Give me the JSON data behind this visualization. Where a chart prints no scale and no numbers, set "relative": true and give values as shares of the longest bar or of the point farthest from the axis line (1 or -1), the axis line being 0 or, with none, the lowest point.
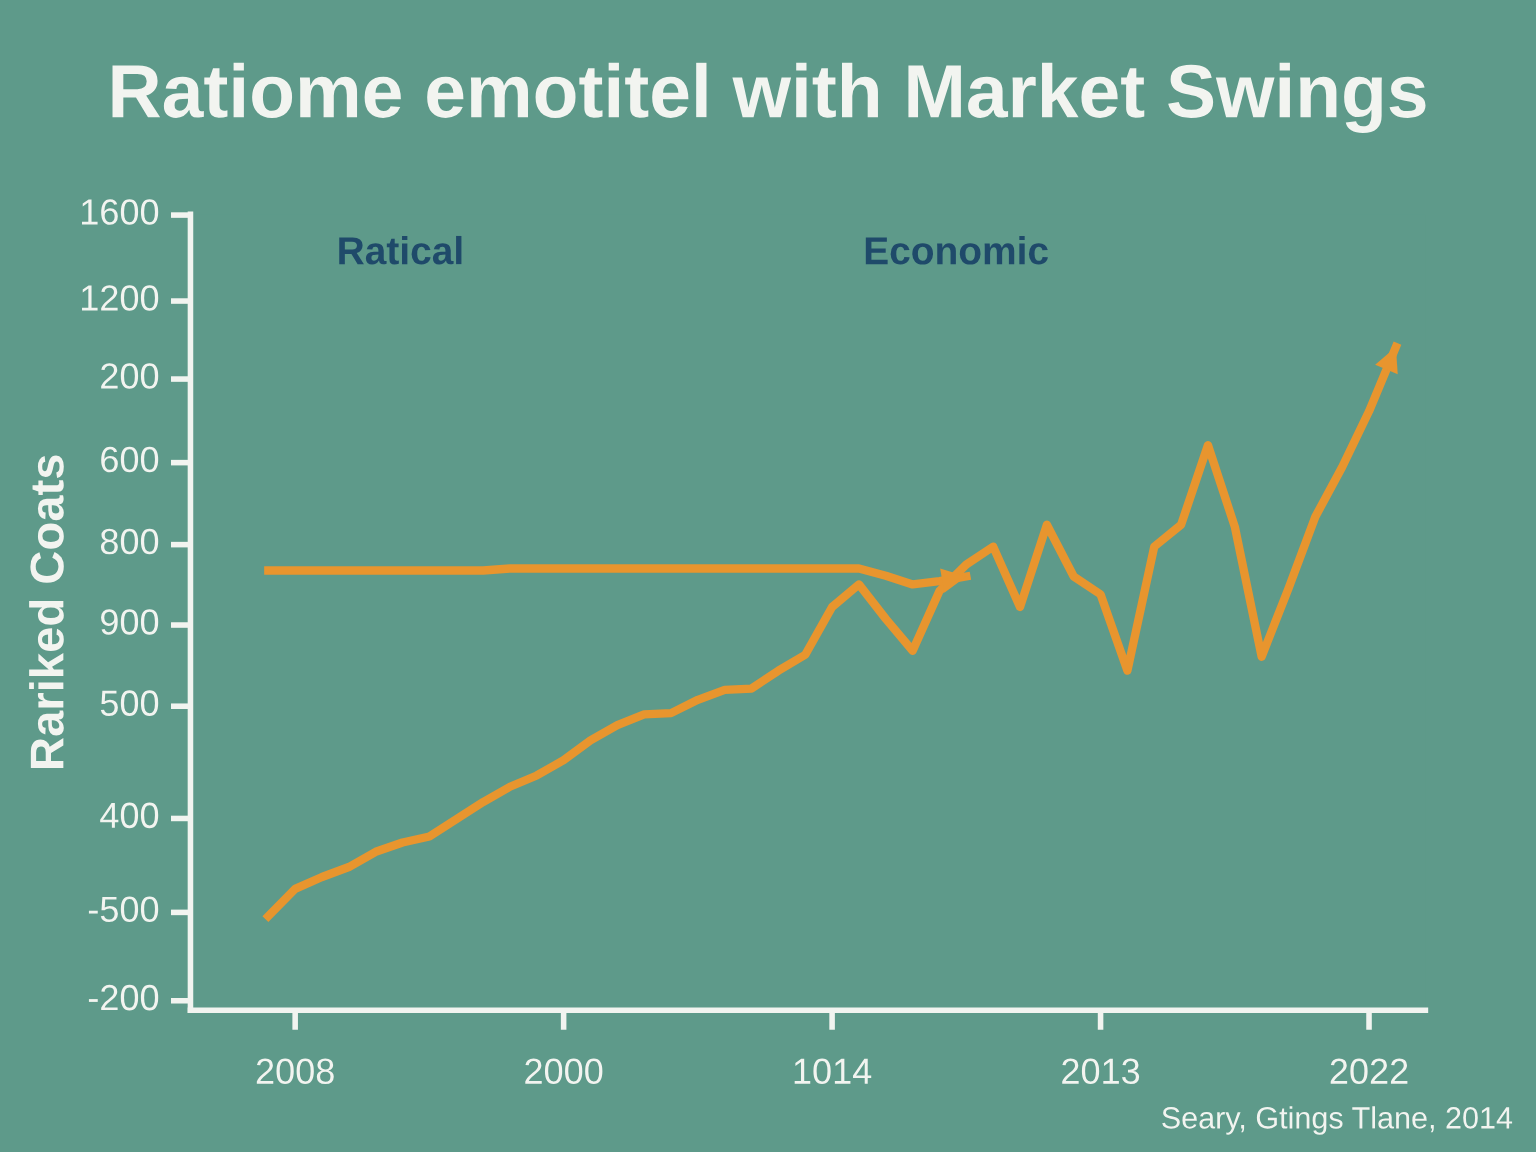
{
  "chart_data": {
    "type": "line",
    "relative": true,
    "title": "Ratiome emotitel with Market Swings",
    "ylabel": "Rariked Coats",
    "annotations": [
      "Ratical",
      "Economic",
      "Seary, Gtings Tlane, 2014",
      "1600",
      "1200",
      "200",
      "600",
      "800",
      "900",
      "500",
      "400",
      "-500",
      "-200"
    ],
    "categories": [
      null,
      "2008",
      null,
      null,
      null,
      null,
      null,
      null,
      null,
      null,
      null,
      "2000",
      null,
      null,
      null,
      null,
      null,
      null,
      null,
      null,
      null,
      "1014",
      null,
      null,
      null,
      null,
      null,
      null,
      null,
      null,
      null,
      "2013",
      null,
      null,
      null,
      null,
      null,
      null,
      null,
      null,
      null,
      "2022",
      null
    ],
    "series": [
      {
        "color": "#e8952e",
        "values": [
          0.142,
          0.183,
          0.201,
          0.216,
          0.239,
          0.253,
          0.262,
          0.288,
          0.314,
          0.337,
          0.354,
          0.377,
          0.407,
          0.43,
          0.446,
          0.448,
          0.468,
          0.483,
          0.485,
          0.512,
          0.536,
          0.608,
          0.642,
          0.59,
          0.542,
          0.632,
          0.672,
          0.699,
          0.608,
          0.732,
          0.654,
          0.627,
          0.512,
          0.699,
          0.732,
          0.852,
          0.729,
          0.533,
          0.636,
          0.744,
          0.819,
          0.903,
          1.0
        ]
      },
      {
        "color": "#e8952e",
        "values": [
          0.663,
          0.663,
          0.663,
          0.663,
          0.663,
          0.663,
          0.663,
          0.663,
          0.663,
          0.666,
          0.666,
          0.666,
          0.666,
          0.666,
          0.666,
          0.666,
          0.666,
          0.666,
          0.666,
          0.666,
          0.666,
          0.666,
          0.666,
          0.655,
          0.642,
          0.647,
          0.654,
          null,
          null,
          null,
          null,
          null,
          null,
          null,
          null,
          null,
          null,
          null,
          null,
          null,
          null,
          null,
          null
        ]
      }
    ],
    "legend": false,
    "marker": "none",
    "line_style": "solid"
  }
}
